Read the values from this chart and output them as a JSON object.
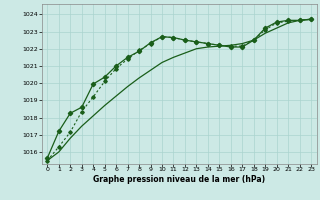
{
  "xlabel": "Graphe pression niveau de la mer (hPa)",
  "bg_color": "#cce9e5",
  "grid_color": "#aad4cf",
  "line_color": "#1a5e1a",
  "xlim": [
    -0.5,
    23.5
  ],
  "ylim": [
    1015.3,
    1024.6
  ],
  "yticks": [
    1016,
    1017,
    1018,
    1019,
    1020,
    1021,
    1022,
    1023,
    1024
  ],
  "xticks": [
    0,
    1,
    2,
    3,
    4,
    5,
    6,
    7,
    8,
    9,
    10,
    11,
    12,
    13,
    14,
    15,
    16,
    17,
    18,
    19,
    20,
    21,
    22,
    23
  ],
  "s1_x": [
    0,
    1,
    2,
    3,
    4,
    5,
    6,
    7,
    8,
    9,
    10,
    11,
    12,
    13,
    14,
    15,
    16,
    17,
    18,
    19,
    20,
    21,
    22,
    23
  ],
  "s1_y": [
    1015.65,
    1017.2,
    1018.25,
    1018.6,
    1019.95,
    1020.35,
    1021.0,
    1021.5,
    1021.85,
    1022.35,
    1022.7,
    1022.65,
    1022.5,
    1022.4,
    1022.3,
    1022.2,
    1022.1,
    1022.1,
    1022.5,
    1023.2,
    1023.55,
    1023.65,
    1023.65,
    1023.7
  ],
  "s2_x": [
    0,
    1,
    2,
    3,
    4,
    5,
    6,
    7,
    8,
    9,
    10,
    11,
    12,
    13,
    14,
    15,
    16,
    17,
    18,
    19,
    20,
    21,
    22,
    23
  ],
  "s2_y": [
    1015.5,
    1016.0,
    1016.8,
    1017.5,
    1018.1,
    1018.7,
    1019.25,
    1019.8,
    1020.3,
    1020.75,
    1021.2,
    1021.5,
    1021.75,
    1022.0,
    1022.1,
    1022.15,
    1022.2,
    1022.3,
    1022.5,
    1022.9,
    1023.2,
    1023.5,
    1023.65,
    1023.72
  ],
  "s3_x": [
    0,
    1,
    2,
    3,
    4,
    5,
    6,
    7,
    8,
    9,
    10,
    11,
    12,
    13,
    14,
    15,
    16,
    17,
    18,
    19,
    20,
    21,
    22,
    23
  ],
  "s3_y": [
    1015.5,
    1016.3,
    1017.15,
    1018.35,
    1019.2,
    1020.1,
    1020.85,
    1021.4,
    1021.9,
    1022.3,
    1022.7,
    1022.65,
    1022.5,
    1022.4,
    1022.3,
    1022.2,
    1022.15,
    1022.15,
    1022.5,
    1023.1,
    1023.5,
    1023.6,
    1023.65,
    1023.72
  ]
}
